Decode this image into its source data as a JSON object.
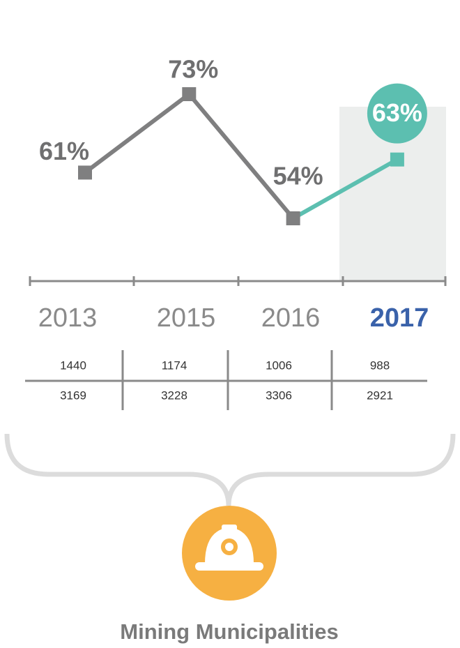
{
  "chart_data": {
    "type": "line",
    "categories": [
      "2013",
      "2015",
      "2016",
      "2017"
    ],
    "values": [
      61,
      73,
      54,
      63
    ],
    "value_labels": [
      "61%",
      "73%",
      "54%",
      "63%"
    ],
    "color": "#7f7f80",
    "highlight_color": "#5cbfb0",
    "highlight_label_color": "#3a62aa"
  },
  "table": {
    "rows": [
      [
        1440,
        1174,
        1006,
        988
      ],
      [
        3169,
        3228,
        3306,
        2921
      ]
    ]
  },
  "footer": {
    "title": "Mining Municipalities"
  }
}
